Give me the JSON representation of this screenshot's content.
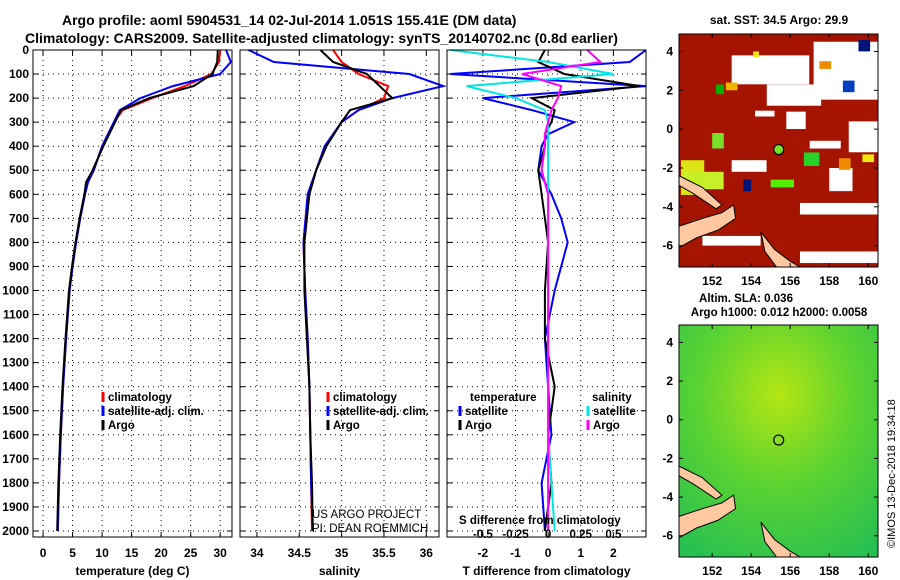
{
  "title_line1": "Argo profile: aoml 5904531_14 02-Jul-2014 1.051S 155.41E (DM data)",
  "title_line2": "Climatology: CARS2009. Satellite-adjusted climatology: synTS_20140702.nc (0.8d earlier)",
  "credit": "US ARGO PROJECT",
  "pi": "PI: DEAN ROEMMICH",
  "timestamp": "©IMOS 13-Dec-2018 19:34:18",
  "colors": {
    "climatology": "#ff0000",
    "satellite": "#0000ff",
    "argo": "#000000",
    "sal_satellite": "#00e5e5",
    "sal_argo": "#ff00ff",
    "sst_bg": "#a51400",
    "sla_bg": "#3cc83c"
  },
  "chart_data": [
    {
      "type": "line",
      "panel": "temperature",
      "xlabel": "temperature (deg C)",
      "ylabel": "",
      "xlim": [
        -1.7,
        32
      ],
      "ylim": [
        2025,
        0
      ],
      "xticks": [
        0,
        5,
        10,
        15,
        20,
        25,
        30
      ],
      "yticks": [
        0,
        100,
        200,
        300,
        400,
        500,
        600,
        700,
        800,
        900,
        1000,
        1100,
        1200,
        1300,
        1400,
        1500,
        1600,
        1700,
        1800,
        1900,
        2000
      ],
      "legend": [
        "climatology",
        "satellite-adj. clim.",
        "Argo"
      ],
      "depth": [
        0,
        50,
        100,
        150,
        200,
        250,
        300,
        400,
        500,
        550,
        600,
        700,
        800,
        900,
        1000,
        1200,
        1400,
        1600,
        1800,
        2000
      ],
      "series": [
        {
          "name": "climatology",
          "values": [
            30,
            29.8,
            28.5,
            24,
            18.5,
            13.5,
            12,
            10,
            8.6,
            7.6,
            7.1,
            6.3,
            5.6,
            5.0,
            4.5,
            3.9,
            3.4,
            3.0,
            2.7,
            2.5
          ]
        },
        {
          "name": "satellite-adj. clim.",
          "values": [
            31,
            31.8,
            30,
            22,
            16.5,
            13,
            12,
            10,
            8.6,
            7.6,
            7.1,
            6.3,
            5.6,
            5.0,
            4.5,
            3.9,
            3.4,
            3.0,
            2.7,
            2.5
          ]
        },
        {
          "name": "Argo",
          "values": [
            29.6,
            29.5,
            28.7,
            25.5,
            18,
            13.2,
            12.2,
            10.2,
            8.4,
            7.3,
            7.0,
            6.2,
            5.5,
            4.9,
            4.4,
            3.8,
            3.3,
            2.9,
            2.6,
            2.4
          ]
        }
      ]
    },
    {
      "type": "line",
      "panel": "salinity",
      "xlabel": "salinity",
      "xlim": [
        33.8,
        36.15
      ],
      "ylim": [
        2025,
        0
      ],
      "xticks": [
        34,
        34.5,
        35,
        35.5,
        36
      ],
      "legend": [
        "climatology",
        "satellite-adj. clim.",
        "Argo"
      ],
      "depth": [
        0,
        50,
        100,
        150,
        200,
        250,
        300,
        400,
        500,
        600,
        800,
        1000,
        1200,
        1400,
        1600,
        1800,
        2000
      ],
      "series": [
        {
          "name": "climatology",
          "values": [
            34.9,
            35.0,
            35.2,
            35.55,
            35.5,
            35.2,
            35.0,
            34.8,
            34.7,
            34.6,
            34.55,
            34.57,
            34.6,
            34.62,
            34.63,
            34.64,
            34.65
          ]
        },
        {
          "name": "satellite-adj. clim.",
          "values": [
            33.9,
            34.2,
            35.8,
            36.2,
            35.6,
            35.2,
            35.0,
            34.8,
            34.7,
            34.6,
            34.55,
            34.57,
            34.6,
            34.62,
            34.63,
            34.64,
            34.66
          ]
        },
        {
          "name": "Argo",
          "values": [
            34.75,
            34.9,
            35.3,
            35.45,
            35.6,
            35.1,
            35.0,
            34.82,
            34.7,
            34.62,
            34.56,
            34.56,
            34.59,
            34.62,
            34.63,
            34.65,
            34.66
          ]
        }
      ]
    },
    {
      "type": "line",
      "panel": "difference",
      "xlabel": "T difference from climatology",
      "x2label": "S difference from climatology",
      "xlim": [
        -3.1,
        3.0
      ],
      "ylim": [
        2025,
        0
      ],
      "xticks": [
        -2,
        -1,
        0,
        1,
        2
      ],
      "x2ticks": [
        "-0.5",
        "-0.25",
        "0",
        "0.25",
        "0.5"
      ],
      "legend_t_title": "temperature",
      "legend_s_title": "salinity",
      "legend": [
        "satellite",
        "Argo",
        "satellite",
        "Argo"
      ],
      "depth": [
        0,
        50,
        100,
        150,
        200,
        250,
        300,
        350,
        400,
        500,
        600,
        700,
        800,
        1000,
        1200,
        1400,
        1600,
        1800,
        2000
      ],
      "series": [
        {
          "name": "T satellite",
          "values": [
            3,
            2.5,
            -3,
            3,
            -2,
            -0.5,
            0.8,
            0,
            -0.2,
            -0.3,
            0.1,
            0.4,
            0.6,
            0.2,
            -0.1,
            0,
            0.1,
            -0.2,
            -0.1
          ]
        },
        {
          "name": "T Argo",
          "values": [
            -0.1,
            -0.3,
            0.5,
            2.8,
            -0.5,
            0.2,
            0.1,
            -0.1,
            -0.1,
            -0.3,
            -0.2,
            -0.1,
            0,
            -0.1,
            -0.1,
            0.2,
            0,
            0.1,
            -0.1
          ]
        },
        {
          "name": "S satellite",
          "values": [
            -3,
            0,
            2,
            -2.5,
            -1,
            -0.1,
            0,
            0,
            0,
            0,
            0,
            0,
            0,
            0,
            0,
            0,
            0,
            0.1,
            0.2
          ]
        },
        {
          "name": "S Argo",
          "values": [
            1.2,
            1.6,
            -0.8,
            0.4,
            0.3,
            0.1,
            0,
            -0.1,
            -0.1,
            -0.2,
            0,
            0,
            0,
            0,
            0,
            0,
            0,
            0,
            0
          ]
        }
      ]
    },
    {
      "type": "heatmap",
      "panel": "sst-map",
      "title": "sat. SST: 34.5 Argo: 29.9",
      "xlim": [
        150.3,
        160.5
      ],
      "ylim": [
        -7.1,
        4.9
      ],
      "xticks": [
        152,
        154,
        156,
        158,
        160
      ],
      "yticks": [
        4,
        2,
        0,
        -2,
        -4,
        -6
      ],
      "float_position": [
        155.41,
        -1.051
      ]
    },
    {
      "type": "heatmap",
      "panel": "sla-map",
      "title": "Altim. SLA: 0.036",
      "subtitle": "Argo h1000: 0.012 h2000: 0.0058",
      "xlim": [
        150.3,
        160.5
      ],
      "ylim": [
        -7.1,
        4.9
      ],
      "xticks": [
        152,
        154,
        156,
        158,
        160
      ],
      "yticks": [
        4,
        2,
        0,
        -2,
        -4,
        -6
      ],
      "float_position": [
        155.41,
        -1.051
      ]
    }
  ]
}
